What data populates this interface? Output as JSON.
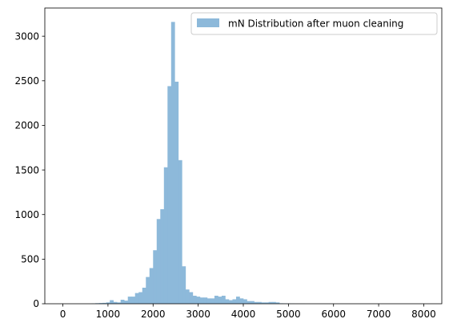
{
  "chart_data": {
    "type": "bar",
    "subtype": "histogram",
    "title": "",
    "xlabel": "",
    "ylabel": "",
    "xlim": [
      -400,
      8400
    ],
    "ylim": [
      0,
      3316
    ],
    "xticks": [
      0,
      1000,
      2000,
      3000,
      4000,
      5000,
      6000,
      7000,
      8000
    ],
    "yticks": [
      0,
      500,
      1000,
      1500,
      2000,
      2500,
      3000
    ],
    "bin_width": 80,
    "bin_start": 0,
    "legend": {
      "position": "top-right"
    },
    "series": [
      {
        "name": "mN Distribution after muon cleaning",
        "color": "#8DB9DA",
        "values": [
          0,
          0,
          0,
          0,
          0,
          0,
          0,
          0,
          2,
          6,
          8,
          10,
          15,
          40,
          20,
          15,
          45,
          35,
          80,
          80,
          120,
          130,
          180,
          300,
          400,
          600,
          950,
          1060,
          1530,
          2440,
          3160,
          2490,
          1610,
          420,
          160,
          130,
          90,
          80,
          70,
          70,
          60,
          60,
          90,
          80,
          90,
          50,
          40,
          50,
          80,
          60,
          50,
          30,
          30,
          20,
          20,
          15,
          15,
          20,
          20,
          15,
          5,
          4,
          3,
          2,
          1,
          1,
          1,
          0,
          0,
          0,
          0,
          0,
          0,
          0,
          0,
          0,
          0,
          0,
          0,
          0,
          0,
          0,
          0,
          0,
          0,
          0,
          0,
          0,
          0,
          0,
          0,
          0,
          0,
          0,
          0,
          0,
          0,
          0,
          0,
          0
        ]
      }
    ]
  }
}
